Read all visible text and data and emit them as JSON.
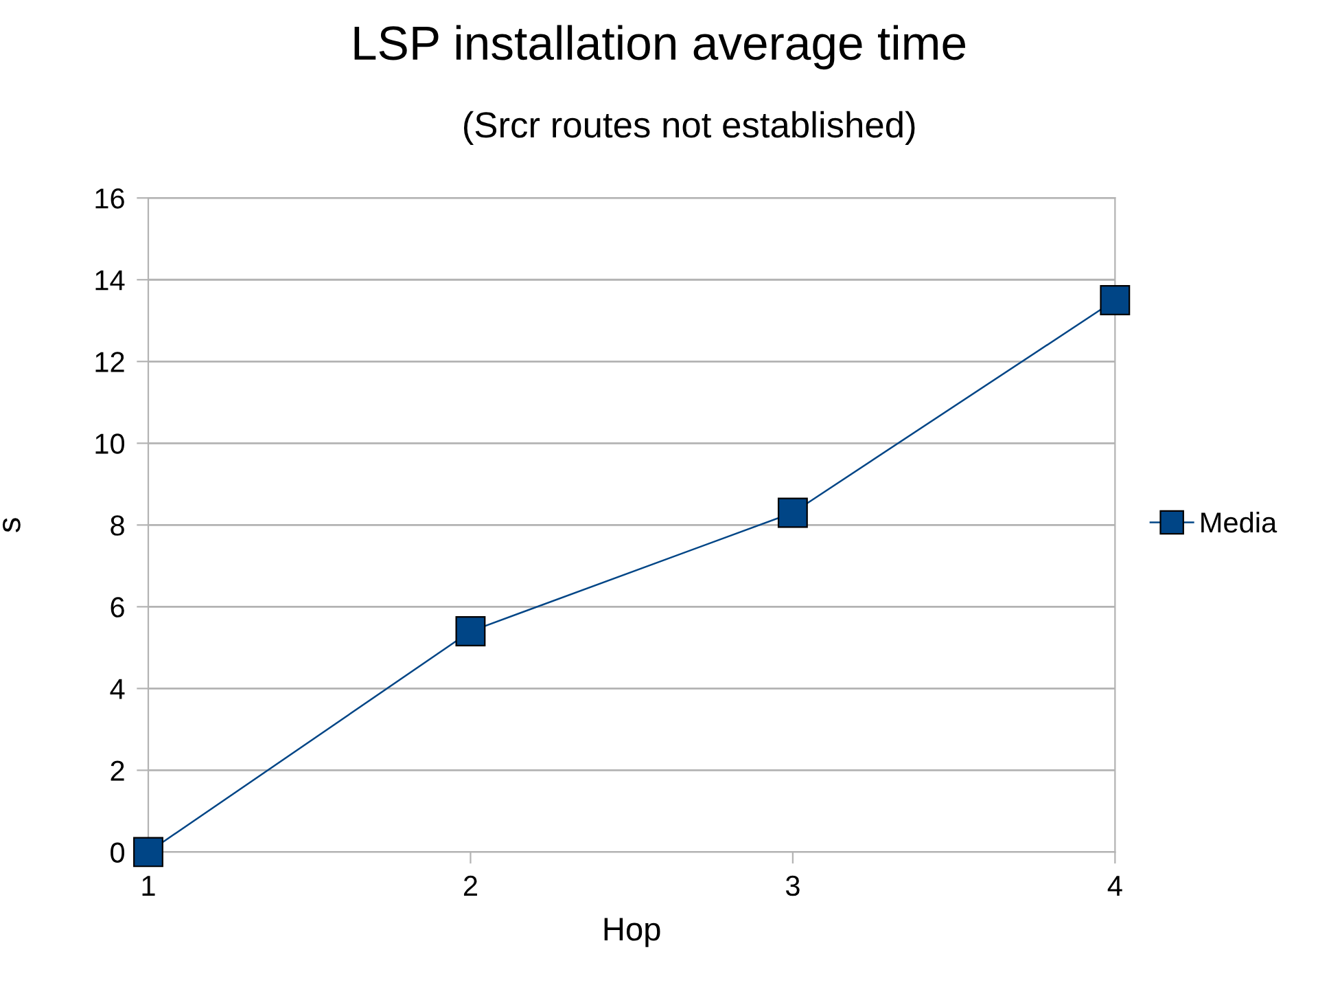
{
  "chart_data": {
    "type": "line",
    "title": "LSP installation average time",
    "subtitle": "(Srcr routes not established)",
    "xlabel": "Hop",
    "ylabel": "s",
    "x": [
      1,
      2,
      3,
      4
    ],
    "series": [
      {
        "name": "Media",
        "color": "#004586",
        "values": [
          0,
          5.4,
          8.3,
          13.5
        ]
      }
    ],
    "xlim": [
      1,
      4
    ],
    "xticks": [
      1,
      2,
      3,
      4
    ],
    "ylim": [
      0,
      16
    ],
    "yticks": [
      0,
      2,
      4,
      6,
      8,
      10,
      12,
      14,
      16
    ],
    "grid": "y",
    "legend": "right",
    "marker": "square",
    "line_style": "solid"
  }
}
